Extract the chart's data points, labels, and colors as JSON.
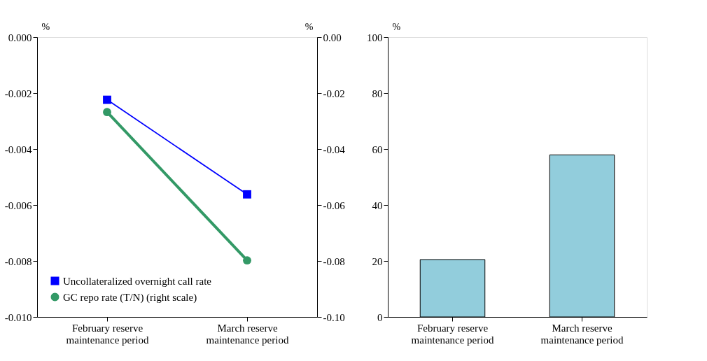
{
  "chart_data": [
    {
      "type": "line",
      "categories": [
        "February reserve maintenance period",
        "March reserve maintenance period"
      ],
      "ylabel": "%",
      "y2label": "%",
      "ylim": [
        -0.01,
        0
      ],
      "yticks": [
        {
          "value": 0,
          "label": "0.000"
        },
        -0.002,
        -0.004,
        -0.006,
        -0.008,
        {
          "value": -0.01,
          "label": "-0.010"
        }
      ],
      "y2lim": [
        -0.1,
        0
      ],
      "y2ticks": [
        {
          "value": 0,
          "label": "0.00"
        },
        -0.02,
        -0.04,
        -0.06,
        -0.08,
        {
          "value": -0.1,
          "label": "-0.10"
        }
      ],
      "grid": false,
      "legend": "bottom left",
      "series": [
        {
          "name": "Uncollateralized overnight call rate",
          "color": "#0000ff",
          "marker": "square",
          "values": [
            -0.00224,
            -0.00562
          ]
        },
        {
          "name": "GC repo rate (T/N) (right scale)",
          "color": "#339966",
          "marker": "circle",
          "axis": "y2",
          "values": [
            -0.0268,
            -0.0798
          ]
        }
      ]
    },
    {
      "type": "bar",
      "categories": [
        "February reserve maintenance period",
        "March reserve maintenance period"
      ],
      "ylabel": "%",
      "ylim": [
        0,
        100
      ],
      "yticks": [
        0,
        20,
        40,
        60,
        80,
        100
      ],
      "grid": false,
      "color": "#92cddc",
      "values": [
        20.5,
        57.9
      ]
    }
  ]
}
